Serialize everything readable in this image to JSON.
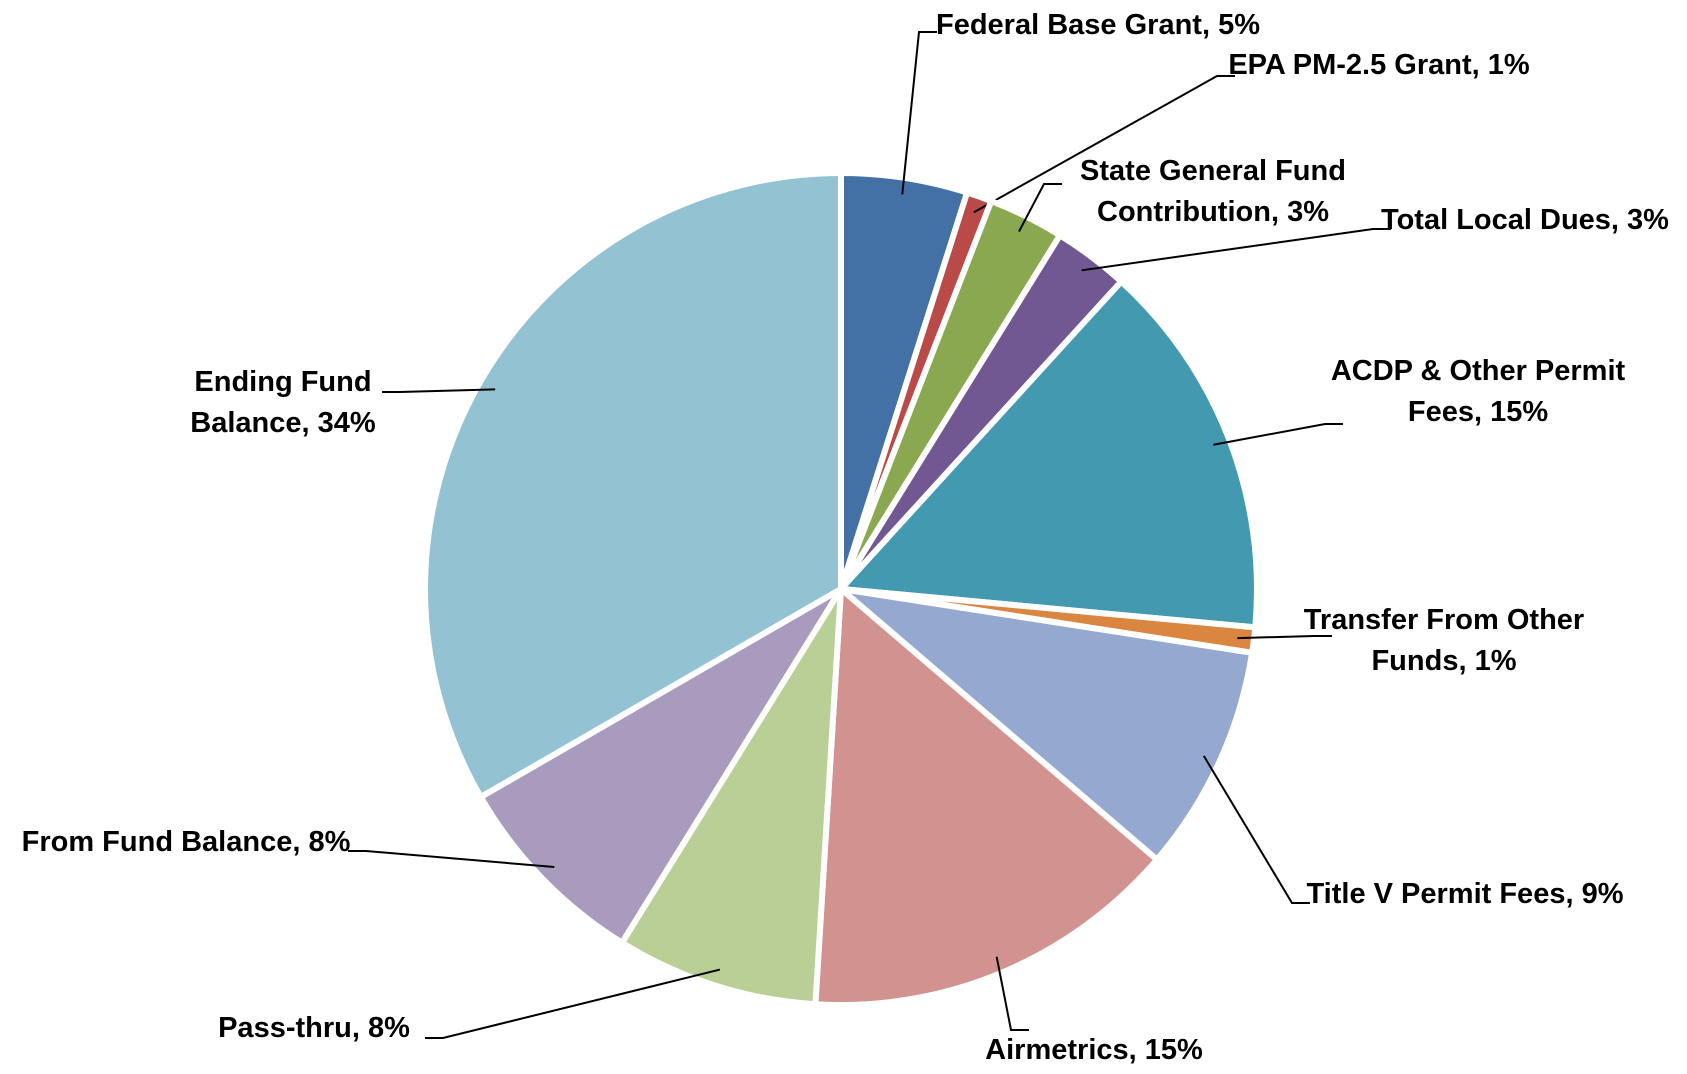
{
  "chart_data": {
    "type": "pie",
    "categories": [
      "Federal Base Grant",
      "EPA PM-2.5 Grant",
      "State General Fund Contribution",
      "Total Local Dues",
      "ACDP & Other Permit Fees",
      "Transfer From Other Funds",
      "Title V Permit Fees",
      "Airmetrics",
      "Pass-thru",
      "From Fund Balance",
      "Ending Fund Balance"
    ],
    "values": [
      5,
      1,
      3,
      3,
      15,
      1,
      9,
      15,
      8,
      8,
      34
    ],
    "value_labels": [
      "5%",
      "1%",
      "3%",
      "3%",
      "15%",
      "1%",
      "9%",
      "15%",
      "8%",
      "8%",
      "34%"
    ],
    "label_separator": ",",
    "colors": [
      "#4471a5",
      "#b94a48",
      "#8aa84f",
      "#715892",
      "#4299b0",
      "#db8640",
      "#95a9d0",
      "#d29290",
      "#b9cf96",
      "#a99bbd",
      "#93c3d3"
    ]
  }
}
